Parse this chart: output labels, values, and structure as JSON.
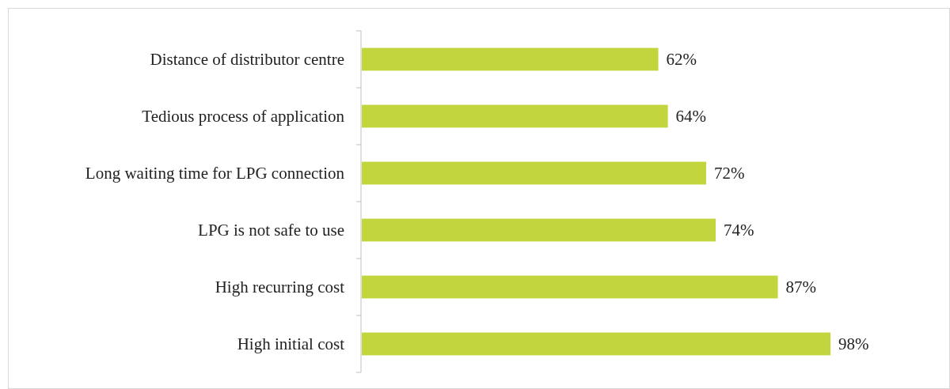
{
  "chart_data": {
    "type": "bar",
    "orientation": "horizontal",
    "categories": [
      "Distance of distributor centre",
      "Tedious process of application",
      "Long waiting time for LPG connection",
      "LPG is not safe to use",
      "High recurring cost",
      "High initial cost"
    ],
    "values": [
      62,
      64,
      72,
      74,
      87,
      98
    ],
    "value_labels": [
      "62%",
      "64%",
      "72%",
      "74%",
      "87%",
      "98%"
    ],
    "color": "#c2d53c",
    "grid": false
  }
}
